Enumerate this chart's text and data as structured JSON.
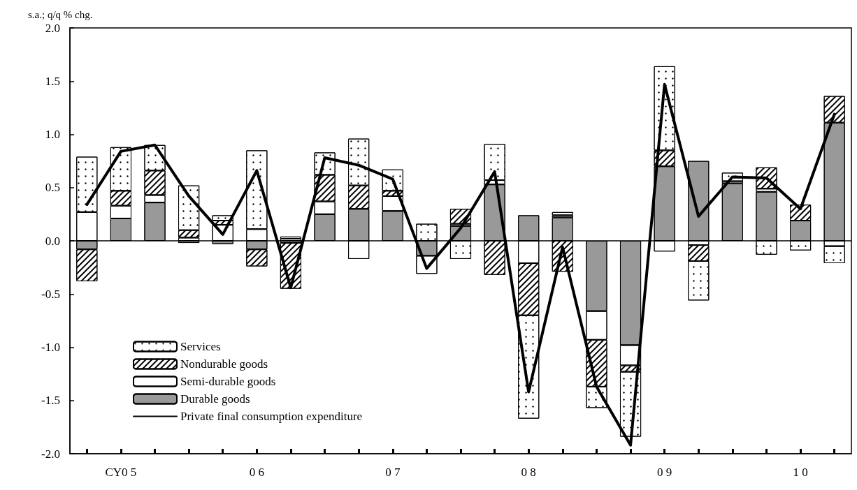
{
  "chart_data": {
    "type": "bar",
    "stacked": true,
    "ylabel": "s.a.; q/q % chg.",
    "categories": [
      null,
      "CY0 5",
      null,
      null,
      null,
      "0 6",
      null,
      null,
      null,
      "0 7",
      null,
      null,
      null,
      "0 8",
      null,
      null,
      null,
      "0 9",
      null,
      null,
      null,
      "1 0",
      null
    ],
    "series": [
      {
        "name": "Durable goods",
        "color": "#999999",
        "values": [
          -0.08,
          0.21,
          0.36,
          -0.02,
          -0.03,
          -0.08,
          -0.02,
          0.25,
          0.3,
          0.28,
          -0.14,
          0.14,
          0.53,
          0.24,
          0.22,
          -0.66,
          -0.98,
          0.7,
          0.75,
          0.54,
          0.46,
          0.19,
          1.11
        ]
      },
      {
        "name": "Semi-durable goods",
        "color": "#ffffff",
        "values": [
          0.27,
          0.12,
          0.07,
          0.03,
          0.15,
          0.11,
          0.02,
          0.12,
          -0.17,
          0.14,
          -0.17,
          0.02,
          0.04,
          -0.21,
          0.02,
          -0.27,
          -0.19,
          -0.1,
          -0.04,
          0.02,
          0.03,
          0,
          -0.05
        ]
      },
      {
        "name": "Nondurable goods",
        "color": "#ffffff",
        "values": [
          -0.3,
          0.14,
          0.23,
          0.07,
          0.04,
          -0.16,
          -0.43,
          0.25,
          0.22,
          0.05,
          0,
          0.14,
          -0.32,
          -0.49,
          -0.29,
          -0.44,
          -0.06,
          0.15,
          -0.15,
          0,
          0.2,
          0.15,
          0.25
        ]
      },
      {
        "name": "Services",
        "color": "#ffffff",
        "values": [
          0.52,
          0.41,
          0.24,
          0.42,
          0.05,
          0.74,
          0.02,
          0.21,
          0.44,
          0.2,
          0.16,
          -0.17,
          0.34,
          -0.97,
          0.03,
          -0.2,
          -0.61,
          0.79,
          -0.37,
          0.08,
          -0.13,
          -0.09,
          -0.16
        ]
      },
      {
        "name": "Private final consumption expenditure",
        "type": "line",
        "color": "#000000",
        "values": [
          0.34,
          0.84,
          0.9,
          0.42,
          0.06,
          0.66,
          -0.44,
          0.78,
          0.71,
          0.58,
          -0.26,
          0.12,
          0.65,
          -1.42,
          -0.06,
          -1.37,
          -1.92,
          1.47,
          0.23,
          0.6,
          0.59,
          0.3,
          1.19
        ]
      }
    ],
    "ylim": [
      -2,
      2
    ],
    "yticks": [
      {
        "value": -2,
        "label": "-2.0"
      },
      {
        "value": -1.5,
        "label": "-1.5"
      },
      {
        "value": -1,
        "label": "-1.0"
      },
      {
        "value": -0.5,
        "label": "-0.5"
      },
      {
        "value": 0,
        "label": "0.0"
      },
      {
        "value": 0.5,
        "label": "0.5"
      },
      {
        "value": 1,
        "label": "1.0"
      },
      {
        "value": 1.5,
        "label": "1.5"
      },
      {
        "value": 2,
        "label": "2.0"
      }
    ],
    "ref_lines": [
      {
        "axis": "y",
        "value": 0,
        "color": "#000000"
      }
    ],
    "grid": false,
    "legend": "bottom left",
    "marker": "none",
    "line_style": "solid"
  }
}
